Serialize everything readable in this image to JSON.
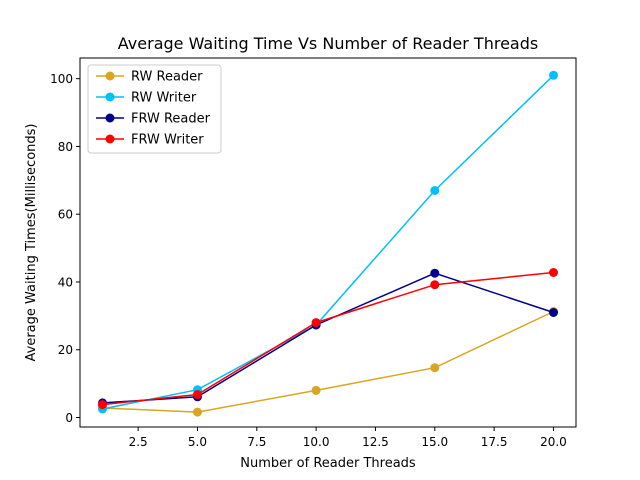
{
  "chart_data": {
    "type": "line",
    "title": "Average Waiting Time Vs Number of Reader Threads",
    "xlabel": "Number of Reader Threads",
    "ylabel": "Average Waiting Times(Milliseconds)",
    "x": [
      1,
      5,
      10,
      15,
      20
    ],
    "xlim": [
      0.05,
      20.95
    ],
    "ylim": [
      -2.8,
      106.1
    ],
    "xticks": [
      2.5,
      5.0,
      7.5,
      10.0,
      12.5,
      15.0,
      17.5,
      20.0
    ],
    "xtick_labels": [
      "2.5",
      "5.0",
      "7.5",
      "10.0",
      "12.5",
      "15.0",
      "17.5",
      "20.0"
    ],
    "yticks": [
      0,
      20,
      40,
      60,
      80,
      100
    ],
    "ytick_labels": [
      "0",
      "20",
      "40",
      "60",
      "80",
      "100"
    ],
    "grid": false,
    "legend_position": "top-left",
    "series": [
      {
        "name": "RW Reader",
        "color": "#DAA520",
        "values": [
          2.8,
          1.6,
          8.0,
          14.7,
          31.3
        ]
      },
      {
        "name": "RW Writer",
        "color": "#00BFFF",
        "values": [
          2.5,
          8.2,
          27.3,
          67.0,
          101.0
        ]
      },
      {
        "name": "FRW Reader",
        "color": "#00008B",
        "values": [
          4.3,
          6.1,
          27.3,
          42.6,
          31.0
        ]
      },
      {
        "name": "FRW Writer",
        "color": "#FF0000",
        "values": [
          3.8,
          6.8,
          28.0,
          39.2,
          42.8
        ]
      }
    ]
  }
}
